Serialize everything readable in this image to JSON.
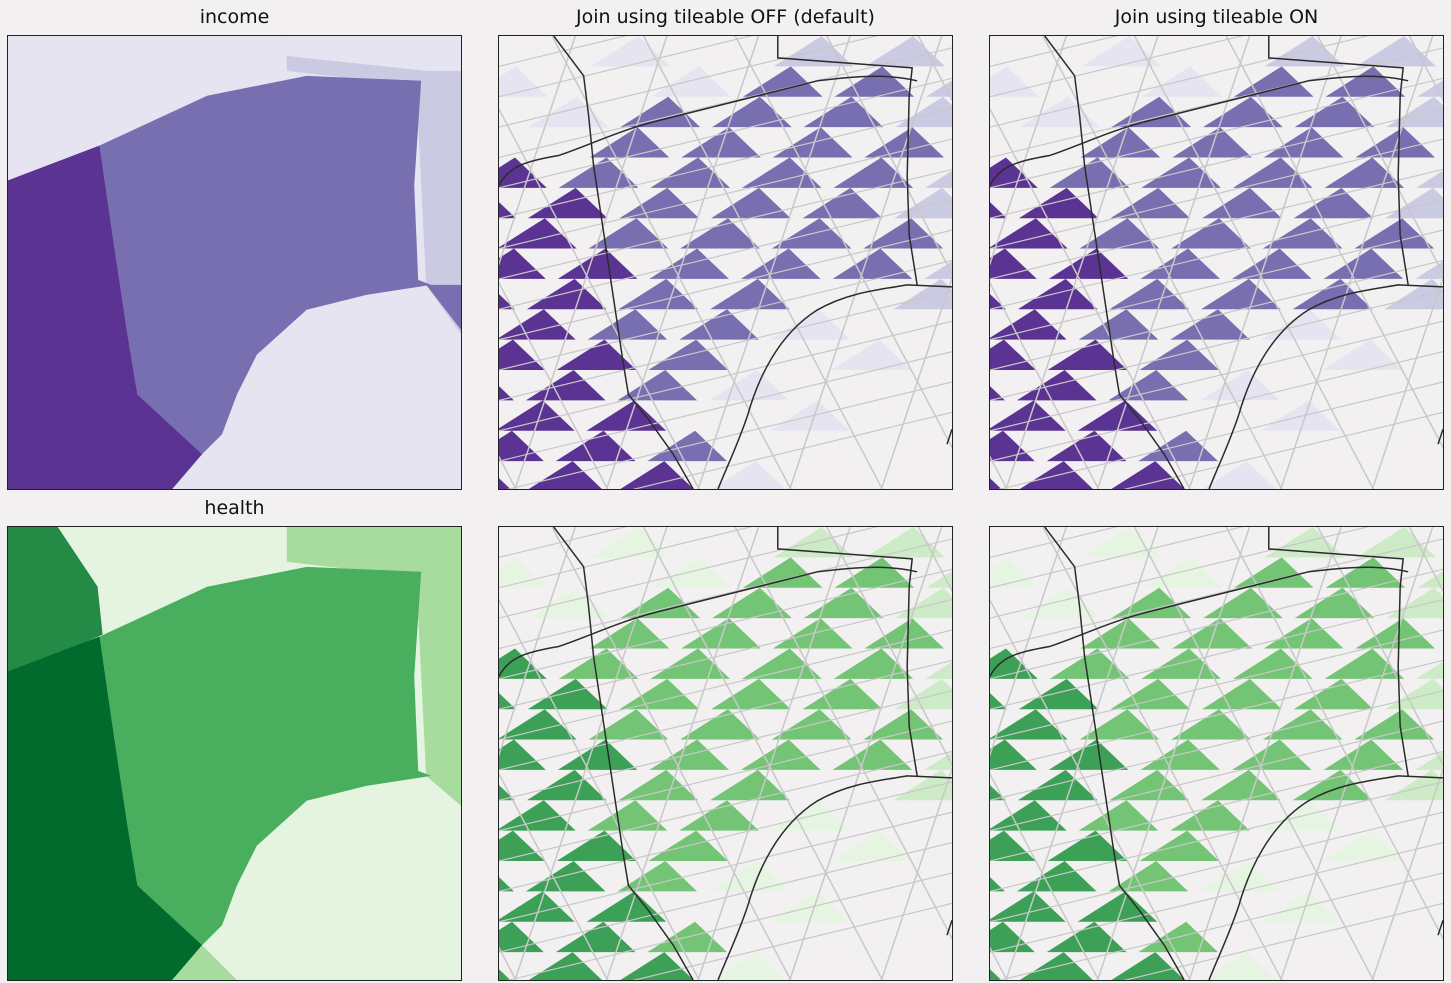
{
  "titles": {
    "income": "income",
    "join_off": "Join using tileable OFF (default)",
    "join_on": "Join using tileable ON",
    "health": "health"
  },
  "palettes": {
    "purple": [
      "#e6e4f1",
      "#cbcae3",
      "#786fb1",
      "#5b3393"
    ],
    "green": [
      "#e5f4e1",
      "#a8dc9f",
      "#4aae5f",
      "#006b2c"
    ],
    "green_tiles": [
      "#e6f5e2",
      "#cdebc6",
      "#74c476",
      "#3ca056"
    ],
    "background": "#f2f0f0",
    "road": "#2b2b2b",
    "grid": "#c8c8c8"
  }
}
